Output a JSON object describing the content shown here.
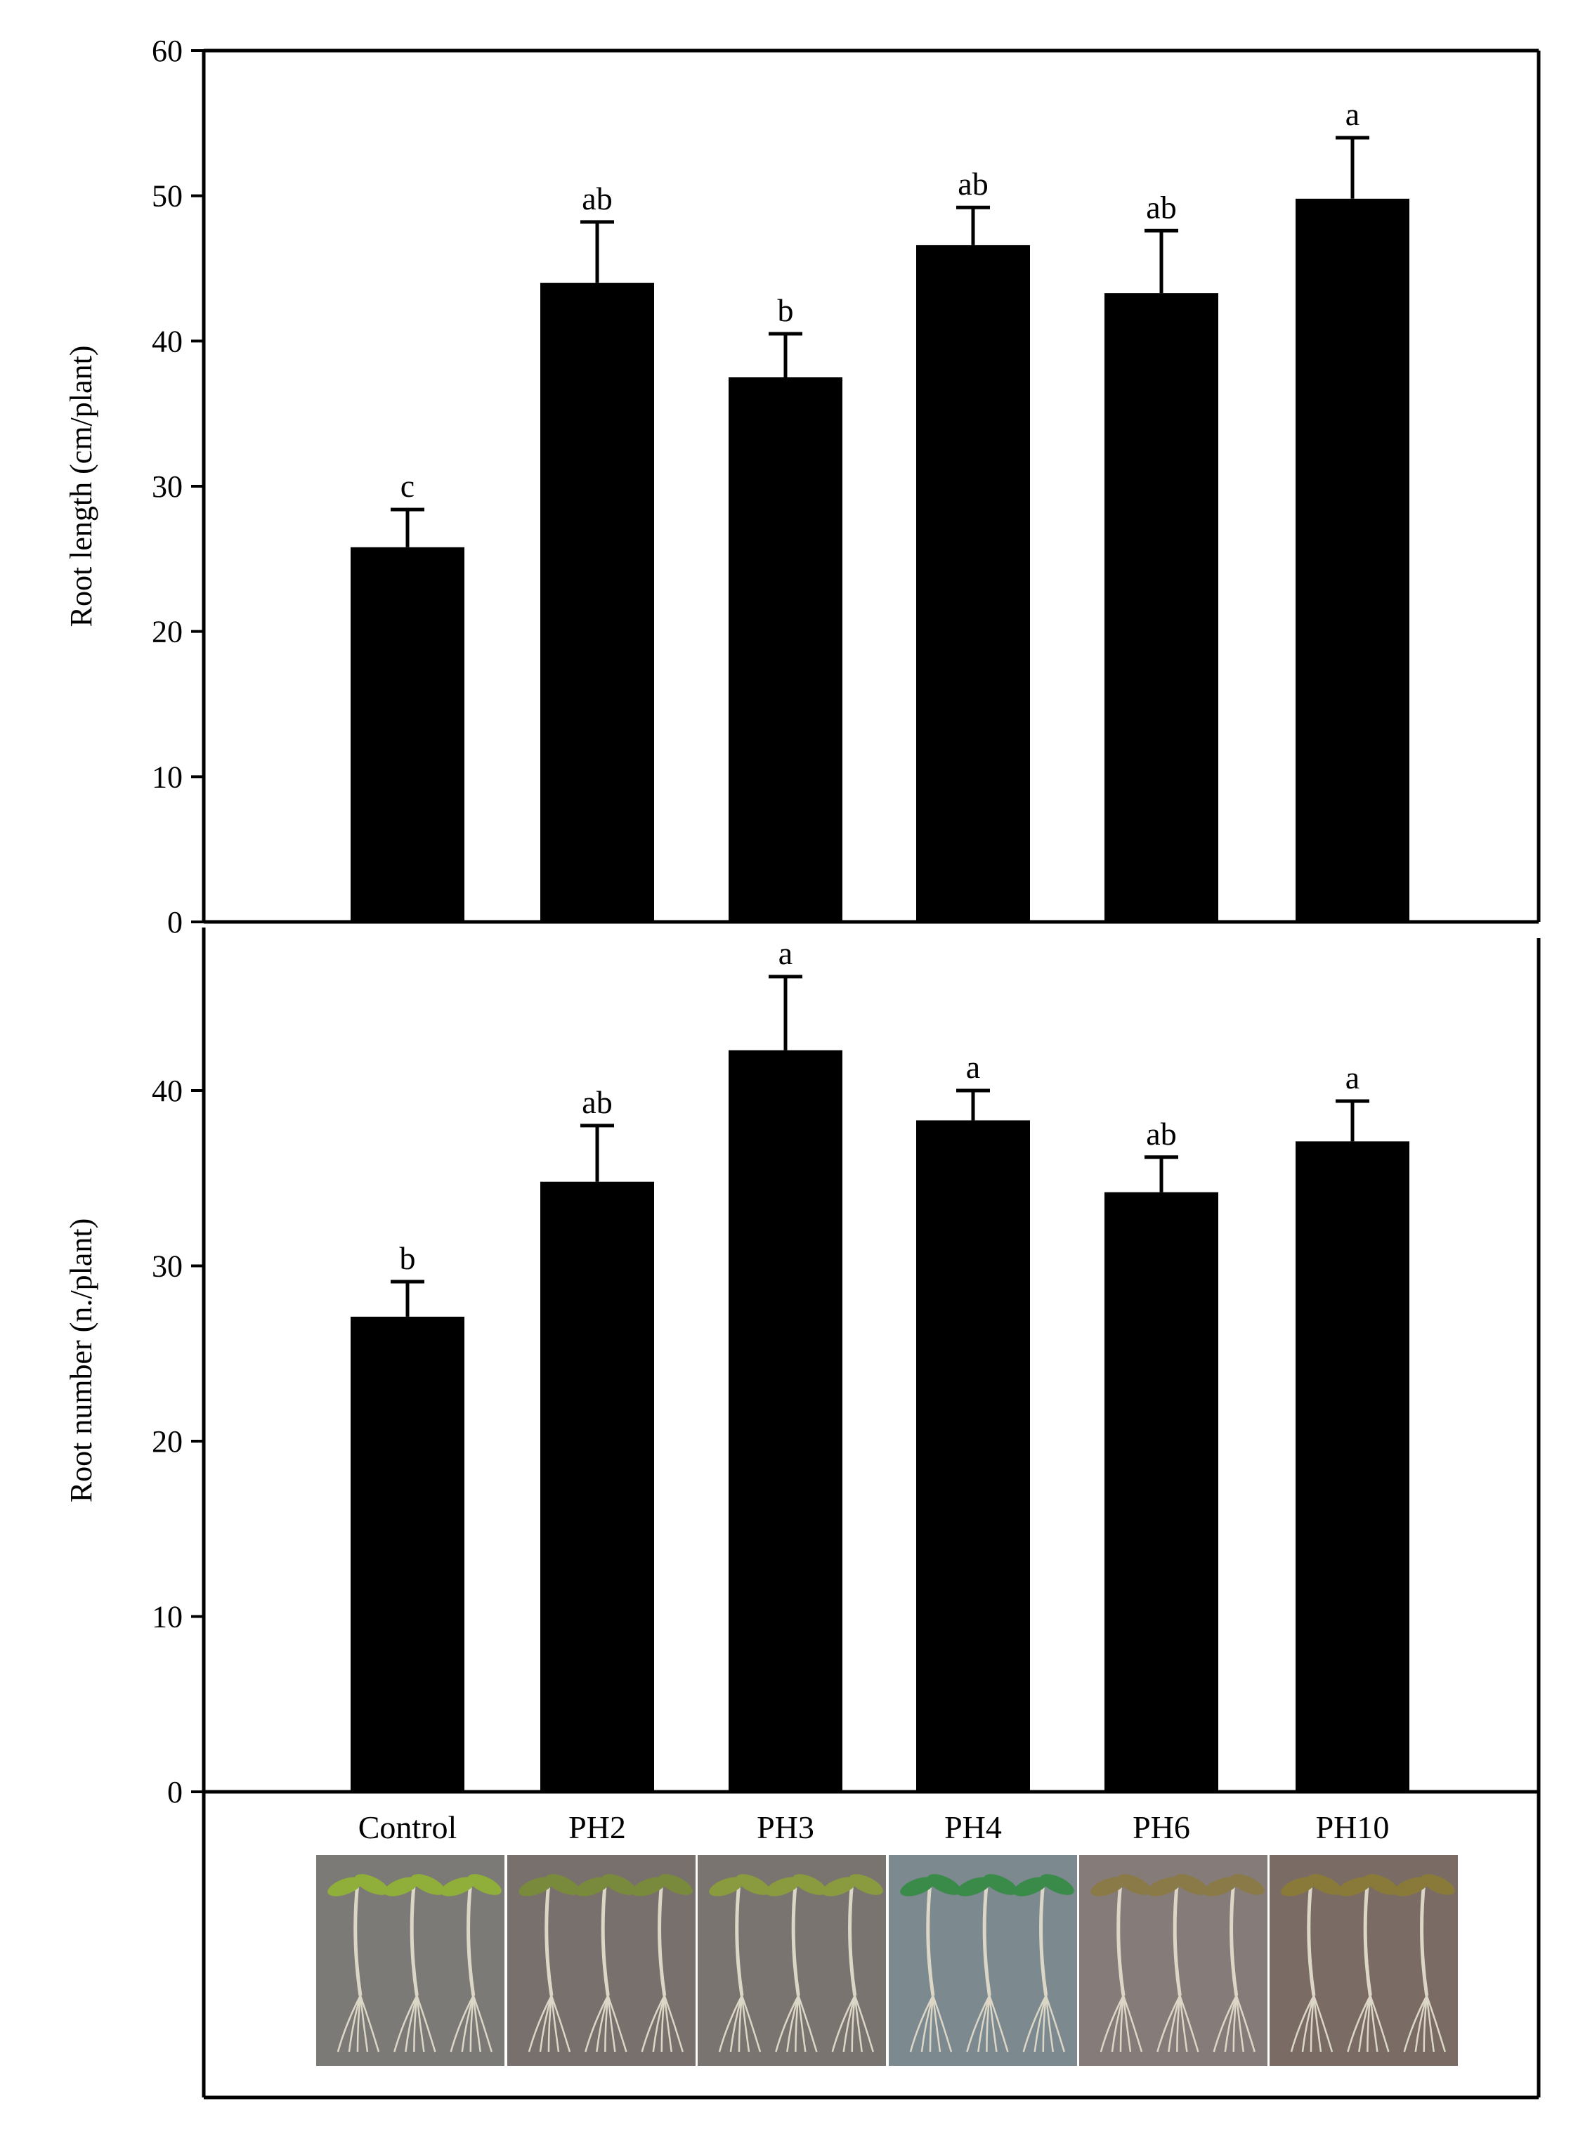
{
  "chart_data": [
    {
      "type": "bar",
      "panel": "top",
      "title": "",
      "xlabel": "",
      "ylabel": "Root length (cm/plant)",
      "ylim": [
        0,
        60
      ],
      "yticks": [
        0,
        10,
        20,
        30,
        40,
        50,
        60
      ],
      "categories": [
        "Control",
        "PH2",
        "PH3",
        "PH4",
        "PH6",
        "PH10"
      ],
      "values": [
        25.8,
        44.0,
        37.5,
        46.6,
        43.3,
        49.8
      ],
      "errors": [
        2.6,
        4.2,
        3.0,
        2.6,
        4.3,
        4.2
      ],
      "letters": [
        "c",
        "ab",
        "b",
        "ab",
        "ab",
        "a"
      ],
      "bar_color": "#000000",
      "grid": false
    },
    {
      "type": "bar",
      "panel": "bottom",
      "title": "",
      "xlabel": "",
      "ylabel": "Root number (n./plant)",
      "ylim": [
        0,
        50
      ],
      "yticks": [
        0,
        10,
        20,
        30,
        40
      ],
      "categories": [
        "Control",
        "PH2",
        "PH3",
        "PH4",
        "PH6",
        "PH10"
      ],
      "values": [
        27.1,
        34.8,
        42.3,
        38.3,
        34.2,
        37.1
      ],
      "errors": [
        2.0,
        3.2,
        4.2,
        1.7,
        2.0,
        2.3
      ],
      "letters": [
        "b",
        "ab",
        "a",
        "a",
        "ab",
        "a"
      ],
      "bar_color": "#000000",
      "grid": false
    }
  ],
  "photo_strip": {
    "labels": [
      "Control",
      "PH2",
      "PH3",
      "PH4",
      "PH6",
      "PH10"
    ],
    "panel_colors": [
      "#7c7a76",
      "#77706c",
      "#7a7470",
      "#7c8a90",
      "#857c7a",
      "#7a6c64"
    ],
    "plant_color": "#dcd6c6",
    "leaf_colors": [
      "#8fae3a",
      "#7a8a3c",
      "#8a9a3e",
      "#3a8a4a",
      "#8a7a48",
      "#8a7a3a"
    ]
  }
}
